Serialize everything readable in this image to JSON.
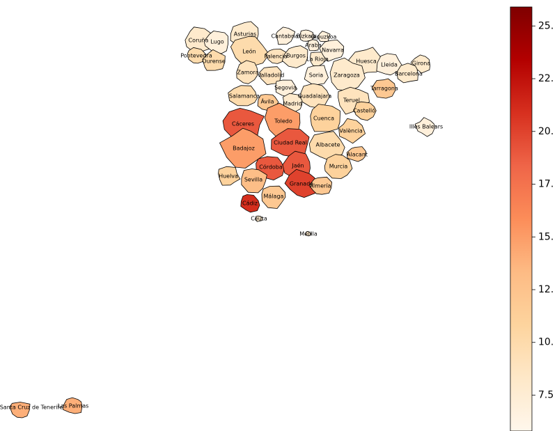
{
  "chart_data": {
    "type": "choropleth",
    "provinces": [
      {
        "name": "Coruña",
        "value": 8
      },
      {
        "name": "Lugo",
        "value": 7
      },
      {
        "name": "Asturias",
        "value": 8
      },
      {
        "name": "Cantabria",
        "value": 7
      },
      {
        "name": "Bizkaia",
        "value": 7
      },
      {
        "name": "Gipuzkoa",
        "value": 7
      },
      {
        "name": "Araba",
        "value": 7
      },
      {
        "name": "Pontevedra",
        "value": 10
      },
      {
        "name": "Ourense",
        "value": 10
      },
      {
        "name": "León",
        "value": 10
      },
      {
        "name": "Palencia",
        "value": 9
      },
      {
        "name": "Burgos",
        "value": 8
      },
      {
        "name": "La Rioja",
        "value": 8
      },
      {
        "name": "Navarra",
        "value": 7
      },
      {
        "name": "Huesca",
        "value": 8
      },
      {
        "name": "Lleida",
        "value": 7
      },
      {
        "name": "Girona",
        "value": 8
      },
      {
        "name": "Barcelona",
        "value": 8
      },
      {
        "name": "Zamora",
        "value": 9
      },
      {
        "name": "Valladolid",
        "value": 9
      },
      {
        "name": "Soria",
        "value": 7
      },
      {
        "name": "Zaragoza",
        "value": 8
      },
      {
        "name": "Salamanca",
        "value": 10
      },
      {
        "name": "Segovia",
        "value": 7
      },
      {
        "name": "Guadalajara",
        "value": 9
      },
      {
        "name": "Teruel",
        "value": 9
      },
      {
        "name": "Tarragona",
        "value": 12
      },
      {
        "name": "Castelló",
        "value": 11
      },
      {
        "name": "Ávila",
        "value": 12
      },
      {
        "name": "Madrid",
        "value": 8
      },
      {
        "name": "Cuenca",
        "value": 11
      },
      {
        "name": "València",
        "value": 11
      },
      {
        "name": "Cáceres",
        "value": 19
      },
      {
        "name": "Toledo",
        "value": 15
      },
      {
        "name": "Ciudad Real",
        "value": 19
      },
      {
        "name": "Albacete",
        "value": 10
      },
      {
        "name": "Alacant",
        "value": 12
      },
      {
        "name": "Badajoz",
        "value": 15
      },
      {
        "name": "Córdoba",
        "value": 19
      },
      {
        "name": "Jaén",
        "value": 19
      },
      {
        "name": "Murcia",
        "value": 11
      },
      {
        "name": "Huelva",
        "value": 11
      },
      {
        "name": "Sevilla",
        "value": 13
      },
      {
        "name": "Granada",
        "value": 20
      },
      {
        "name": "Almería",
        "value": 12
      },
      {
        "name": "Cádiz",
        "value": 21
      },
      {
        "name": "Málaga",
        "value": 12
      },
      {
        "name": "Ceuta",
        "value": 8
      },
      {
        "name": "Melilla",
        "value": 8
      },
      {
        "name": "Illes Balears",
        "value": 7
      },
      {
        "name": "Santa Cruz de Tenerife",
        "value": 14
      },
      {
        "name": "Las Palmas",
        "value": 14
      }
    ],
    "colormap": [
      "#fff7ec",
      "#fee8c8",
      "#fdd49e",
      "#fdbb84",
      "#fc8d59",
      "#ef6548",
      "#d7301f",
      "#b30000",
      "#7f0000"
    ],
    "clim": [
      5.8,
      25.9
    ],
    "cticks": [
      {
        "value": 25,
        "label": "25."
      },
      {
        "value": 22.5,
        "label": "22."
      },
      {
        "value": 20,
        "label": "20."
      },
      {
        "value": 17.5,
        "label": "17."
      },
      {
        "value": 15,
        "label": "15."
      },
      {
        "value": 12.5,
        "label": "12."
      },
      {
        "value": 10,
        "label": "10."
      },
      {
        "value": 7.5,
        "label": "7.5"
      }
    ]
  }
}
